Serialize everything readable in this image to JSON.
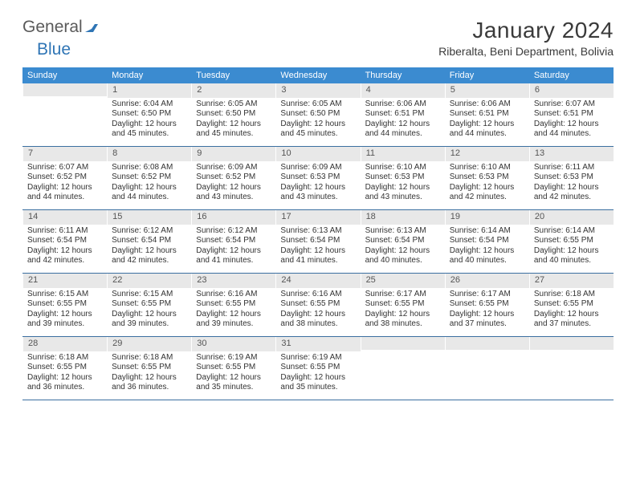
{
  "brand": {
    "text1": "General",
    "text2": "Blue",
    "icon_color": "#2f75b5"
  },
  "title": "January 2024",
  "location": "Riberalta, Beni Department, Bolivia",
  "header_bg": "#3b8bd0",
  "rule_color": "#3b6fa0",
  "daynum_bg": "#e8e8e8",
  "weekdays": [
    "Sunday",
    "Monday",
    "Tuesday",
    "Wednesday",
    "Thursday",
    "Friday",
    "Saturday"
  ],
  "weeks": [
    [
      {
        "empty": true
      },
      {
        "num": "1",
        "sr": "6:04 AM",
        "ss": "6:50 PM",
        "dl": "12 hours and 45 minutes."
      },
      {
        "num": "2",
        "sr": "6:05 AM",
        "ss": "6:50 PM",
        "dl": "12 hours and 45 minutes."
      },
      {
        "num": "3",
        "sr": "6:05 AM",
        "ss": "6:50 PM",
        "dl": "12 hours and 45 minutes."
      },
      {
        "num": "4",
        "sr": "6:06 AM",
        "ss": "6:51 PM",
        "dl": "12 hours and 44 minutes."
      },
      {
        "num": "5",
        "sr": "6:06 AM",
        "ss": "6:51 PM",
        "dl": "12 hours and 44 minutes."
      },
      {
        "num": "6",
        "sr": "6:07 AM",
        "ss": "6:51 PM",
        "dl": "12 hours and 44 minutes."
      }
    ],
    [
      {
        "num": "7",
        "sr": "6:07 AM",
        "ss": "6:52 PM",
        "dl": "12 hours and 44 minutes."
      },
      {
        "num": "8",
        "sr": "6:08 AM",
        "ss": "6:52 PM",
        "dl": "12 hours and 44 minutes."
      },
      {
        "num": "9",
        "sr": "6:09 AM",
        "ss": "6:52 PM",
        "dl": "12 hours and 43 minutes."
      },
      {
        "num": "10",
        "sr": "6:09 AM",
        "ss": "6:53 PM",
        "dl": "12 hours and 43 minutes."
      },
      {
        "num": "11",
        "sr": "6:10 AM",
        "ss": "6:53 PM",
        "dl": "12 hours and 43 minutes."
      },
      {
        "num": "12",
        "sr": "6:10 AM",
        "ss": "6:53 PM",
        "dl": "12 hours and 42 minutes."
      },
      {
        "num": "13",
        "sr": "6:11 AM",
        "ss": "6:53 PM",
        "dl": "12 hours and 42 minutes."
      }
    ],
    [
      {
        "num": "14",
        "sr": "6:11 AM",
        "ss": "6:54 PM",
        "dl": "12 hours and 42 minutes."
      },
      {
        "num": "15",
        "sr": "6:12 AM",
        "ss": "6:54 PM",
        "dl": "12 hours and 42 minutes."
      },
      {
        "num": "16",
        "sr": "6:12 AM",
        "ss": "6:54 PM",
        "dl": "12 hours and 41 minutes."
      },
      {
        "num": "17",
        "sr": "6:13 AM",
        "ss": "6:54 PM",
        "dl": "12 hours and 41 minutes."
      },
      {
        "num": "18",
        "sr": "6:13 AM",
        "ss": "6:54 PM",
        "dl": "12 hours and 40 minutes."
      },
      {
        "num": "19",
        "sr": "6:14 AM",
        "ss": "6:54 PM",
        "dl": "12 hours and 40 minutes."
      },
      {
        "num": "20",
        "sr": "6:14 AM",
        "ss": "6:55 PM",
        "dl": "12 hours and 40 minutes."
      }
    ],
    [
      {
        "num": "21",
        "sr": "6:15 AM",
        "ss": "6:55 PM",
        "dl": "12 hours and 39 minutes."
      },
      {
        "num": "22",
        "sr": "6:15 AM",
        "ss": "6:55 PM",
        "dl": "12 hours and 39 minutes."
      },
      {
        "num": "23",
        "sr": "6:16 AM",
        "ss": "6:55 PM",
        "dl": "12 hours and 39 minutes."
      },
      {
        "num": "24",
        "sr": "6:16 AM",
        "ss": "6:55 PM",
        "dl": "12 hours and 38 minutes."
      },
      {
        "num": "25",
        "sr": "6:17 AM",
        "ss": "6:55 PM",
        "dl": "12 hours and 38 minutes."
      },
      {
        "num": "26",
        "sr": "6:17 AM",
        "ss": "6:55 PM",
        "dl": "12 hours and 37 minutes."
      },
      {
        "num": "27",
        "sr": "6:18 AM",
        "ss": "6:55 PM",
        "dl": "12 hours and 37 minutes."
      }
    ],
    [
      {
        "num": "28",
        "sr": "6:18 AM",
        "ss": "6:55 PM",
        "dl": "12 hours and 36 minutes."
      },
      {
        "num": "29",
        "sr": "6:18 AM",
        "ss": "6:55 PM",
        "dl": "12 hours and 36 minutes."
      },
      {
        "num": "30",
        "sr": "6:19 AM",
        "ss": "6:55 PM",
        "dl": "12 hours and 35 minutes."
      },
      {
        "num": "31",
        "sr": "6:19 AM",
        "ss": "6:55 PM",
        "dl": "12 hours and 35 minutes."
      },
      {
        "empty": true
      },
      {
        "empty": true
      },
      {
        "empty": true
      }
    ]
  ],
  "labels": {
    "sunrise": "Sunrise:",
    "sunset": "Sunset:",
    "daylight": "Daylight:"
  }
}
